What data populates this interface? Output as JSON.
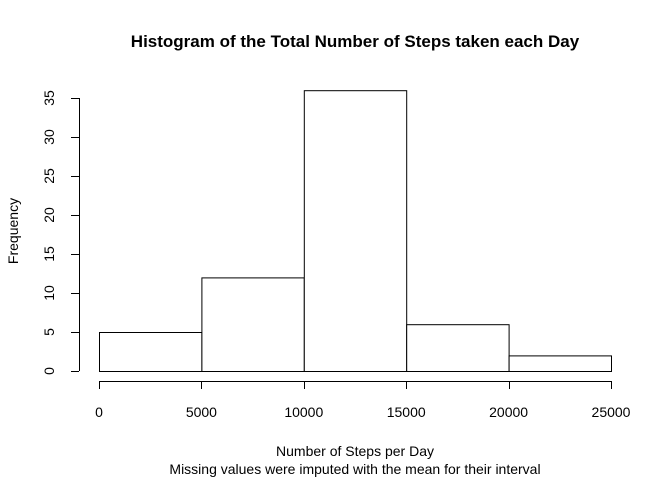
{
  "chart_data": {
    "type": "bar",
    "title": "Histogram of the Total Number of Steps taken each Day",
    "xlabel": "Number of Steps per Day",
    "subtitle": "Missing values were imputed with the mean for their interval",
    "ylabel": "Frequency",
    "bins": [
      {
        "from": 0,
        "to": 5000,
        "count": 5
      },
      {
        "from": 5000,
        "to": 10000,
        "count": 12
      },
      {
        "from": 10000,
        "to": 15000,
        "count": 36
      },
      {
        "from": 15000,
        "to": 20000,
        "count": 6
      },
      {
        "from": 20000,
        "to": 25000,
        "count": 2
      }
    ],
    "xlim": [
      0,
      25000
    ],
    "ylim": [
      0,
      35
    ],
    "x_ticks": [
      0,
      5000,
      10000,
      15000,
      20000,
      25000
    ],
    "y_ticks": [
      0,
      5,
      10,
      15,
      20,
      25,
      30,
      35
    ],
    "grid": false,
    "bar_fill": "#ffffff",
    "bar_stroke": "#000000"
  }
}
